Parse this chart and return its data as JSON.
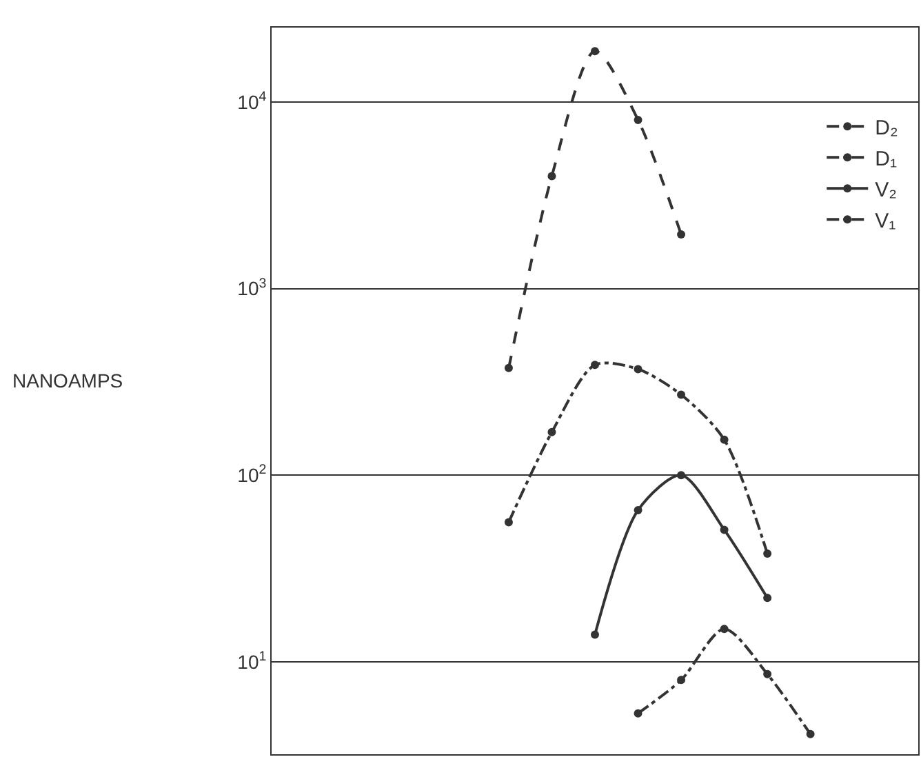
{
  "chart_data": {
    "type": "line",
    "annotations": [
      "NANOAMPS"
    ],
    "categories": [
      null,
      null,
      null,
      null,
      null,
      null,
      null,
      null,
      null,
      null,
      null,
      null,
      null,
      null,
      null
    ],
    "series": [
      {
        "name": "D₂",
        "color": "#333333",
        "line_style": "dashed",
        "values": [
          null,
          null,
          null,
          null,
          null,
          375,
          4000,
          18700,
          8000,
          1950,
          null,
          null,
          null,
          null,
          null
        ]
      },
      {
        "name": "D₁",
        "color": "#333333",
        "line_style": "dashdot",
        "values": [
          null,
          null,
          null,
          null,
          null,
          56,
          170,
          390,
          370,
          270,
          155,
          38,
          null,
          null,
          null
        ]
      },
      {
        "name": "V₂",
        "color": "#333333",
        "line_style": "solid",
        "values": [
          null,
          null,
          null,
          null,
          null,
          null,
          null,
          14,
          65,
          100,
          51,
          22,
          null,
          null,
          null
        ]
      },
      {
        "name": "V₁",
        "color": "#333333",
        "line_style": "dashdot",
        "values": [
          null,
          null,
          null,
          null,
          null,
          null,
          null,
          null,
          5.3,
          8,
          15,
          8.6,
          4.1,
          null,
          null
        ]
      }
    ],
    "log": "y",
    "ylim": [
      3.2,
      25000
    ],
    "yticks": [
      {
        "value": 10,
        "label": "10$^{1}$"
      },
      {
        "value": 100,
        "label": "10$^{2}$"
      },
      {
        "value": 1000,
        "label": "10$^{3}$"
      },
      {
        "value": 10000,
        "label": "10$^{4}$"
      }
    ],
    "grid": "y",
    "legend": "right",
    "marker": "circle",
    "tick_labels": "y"
  }
}
